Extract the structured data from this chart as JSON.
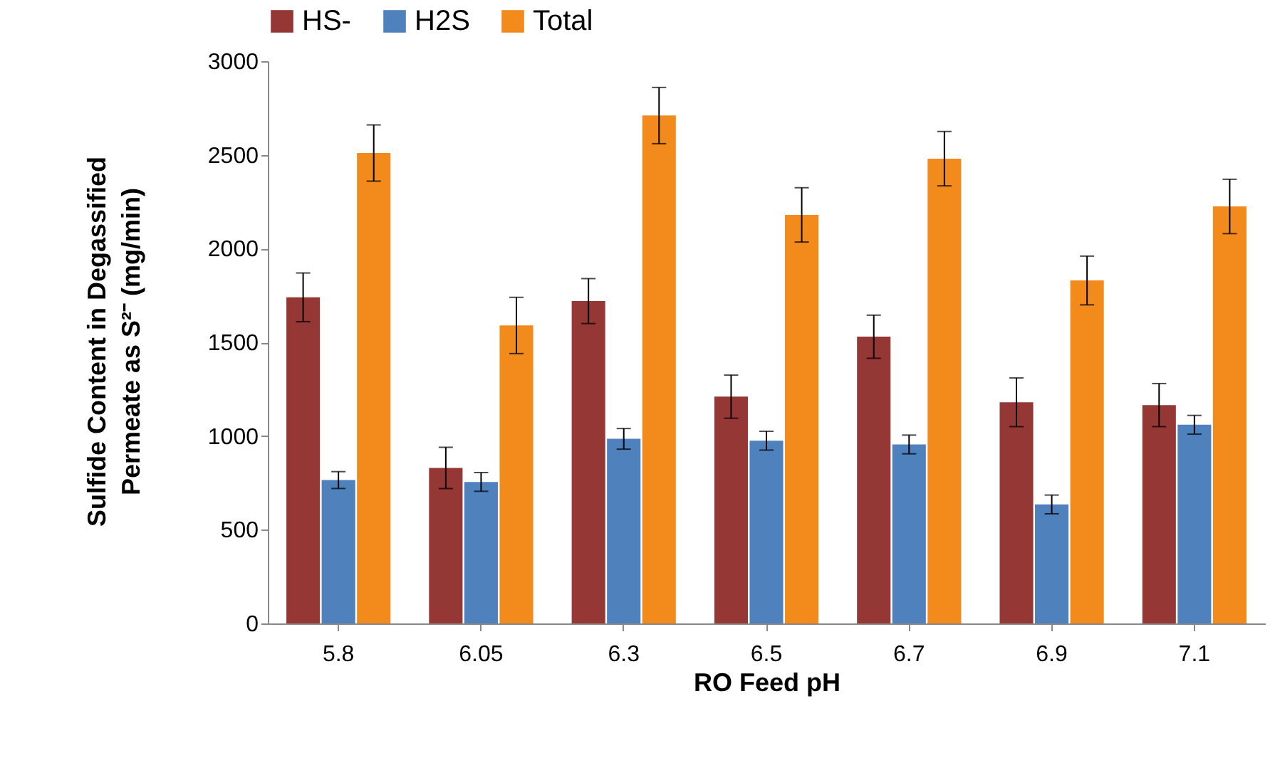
{
  "chart_data": {
    "type": "bar",
    "xlabel": "RO Feed pH",
    "ylabel": "Sulfide Content in Degassified Permeate as S²⁻ (mg/min)",
    "categories": [
      "5.8",
      "6.05",
      "6.3",
      "6.5",
      "6.7",
      "6.9",
      "7.1"
    ],
    "series": [
      {
        "name": "HS-",
        "color": "#953735",
        "values": [
          1740,
          830,
          1720,
          1210,
          1530,
          1180,
          1165
        ],
        "errors": [
          130,
          110,
          120,
          115,
          115,
          130,
          115
        ]
      },
      {
        "name": "H2S",
        "color": "#4f81bd",
        "values": [
          765,
          755,
          985,
          975,
          955,
          635,
          1060
        ],
        "errors": [
          45,
          50,
          55,
          50,
          50,
          50,
          50
        ]
      },
      {
        "name": "Total",
        "color": "#f38a1c",
        "values": [
          2510,
          1590,
          2710,
          2180,
          2480,
          1830,
          2225
        ],
        "errors": [
          150,
          150,
          150,
          145,
          145,
          130,
          145
        ]
      }
    ],
    "ylim": [
      0,
      3000
    ],
    "yticks": [
      0,
      500,
      1000,
      1500,
      2000,
      2500,
      3000
    ],
    "grid": false,
    "legend": "top"
  }
}
